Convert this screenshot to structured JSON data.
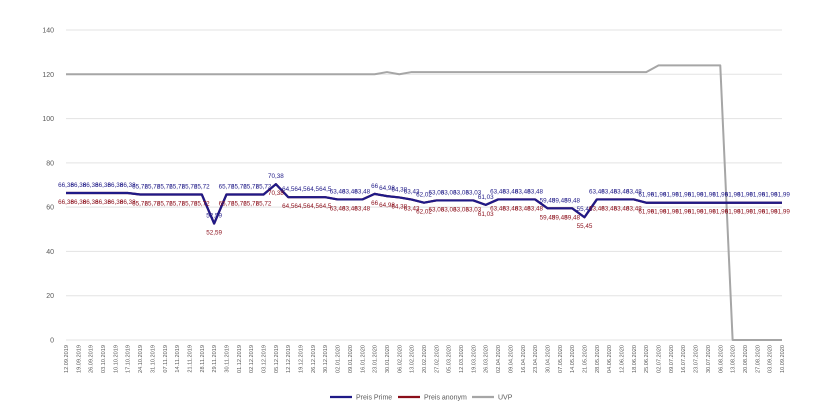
{
  "chart_data": {
    "type": "line",
    "title": "",
    "xlabel": "",
    "ylabel": "",
    "ylim": [
      0,
      140
    ],
    "yticks": [
      0,
      20,
      40,
      60,
      80,
      100,
      120,
      140
    ],
    "grid": true,
    "legend_position": "bottom",
    "categories": [
      "12.09.2019",
      "19.09.2019",
      "26.09.2019",
      "03.10.2019",
      "10.10.2019",
      "17.10.2019",
      "24.10.2019",
      "31.10.2019",
      "07.11.2019",
      "14.11.2019",
      "21.11.2019",
      "28.11.2019",
      "29.11.2019",
      "30.11.2019",
      "01.12.2019",
      "02.12.2019",
      "03.12.2019",
      "05.12.2019",
      "12.12.2019",
      "19.12.2019",
      "26.12.2019",
      "30.12.2019",
      "02.01.2020",
      "09.01.2020",
      "16.01.2020",
      "23.01.2020",
      "30.01.2020",
      "06.02.2020",
      "13.02.2020",
      "20.02.2020",
      "27.02.2020",
      "05.03.2020",
      "12.03.2020",
      "19.03.2020",
      "26.03.2020",
      "02.04.2020",
      "09.04.2020",
      "16.04.2020",
      "23.04.2020",
      "30.04.2020",
      "07.05.2020",
      "14.05.2020",
      "21.05.2020",
      "28.05.2020",
      "04.06.2020",
      "12.06.2020",
      "18.06.2020",
      "25.06.2020",
      "02.07.2020",
      "09.07.2020",
      "16.07.2020",
      "23.07.2020",
      "30.07.2020",
      "06.08.2020",
      "13.08.2020",
      "20.08.2020",
      "27.08.2020",
      "03.09.2020",
      "10.09.2020"
    ],
    "series": [
      {
        "name": "Preis Prime",
        "color": "#1f1a87",
        "values": [
          66.38,
          66.38,
          66.38,
          66.38,
          66.38,
          66.38,
          65.72,
          65.72,
          65.72,
          65.72,
          65.72,
          65.72,
          52.59,
          65.72,
          65.72,
          65.72,
          65.72,
          70.38,
          64.5,
          64.5,
          64.5,
          64.5,
          63.48,
          63.48,
          63.48,
          66.0,
          64.98,
          64.38,
          63.43,
          62.02,
          63.03,
          63.03,
          63.03,
          63.03,
          61.03,
          63.48,
          63.48,
          63.48,
          63.48,
          59.48,
          59.48,
          59.48,
          55.45,
          63.48,
          63.48,
          63.48,
          63.48,
          61.99,
          61.99,
          61.99,
          61.99,
          61.99,
          61.99,
          61.99,
          61.99,
          61.99,
          61.99,
          61.99,
          61.99
        ],
        "labels": [
          "66,38",
          "66,38",
          "66,38",
          "66,38",
          "66,38",
          "66,38",
          "65,72",
          "65,72",
          "65,72",
          "65,72",
          "65,72",
          "65,72",
          "52,59",
          "65,72",
          "65,72",
          "65,72",
          "65,72",
          "70,38",
          "64,5",
          "64,5",
          "64,5",
          "64,5",
          "63,48",
          "63,48",
          "63,48",
          "66",
          "64,98",
          "64,38",
          "63,43",
          "62,02",
          "63,03",
          "63,03",
          "63,03",
          "63,03",
          "61,03",
          "63,48",
          "63,48",
          "63,48",
          "63,48",
          "59,48",
          "59,48",
          "59,48",
          "55,45",
          "63,48",
          "63,48",
          "63,48",
          "63,48",
          "61,99",
          "61,99",
          "61,99",
          "61,99",
          "61,99",
          "61,99",
          "61,99",
          "61,99",
          "61,99",
          "61,99",
          "61,99",
          "61,99"
        ]
      },
      {
        "name": "Preis anonym",
        "color": "#8b0e1a",
        "values": [
          66.38,
          66.38,
          66.38,
          66.38,
          66.38,
          66.38,
          65.72,
          65.72,
          65.72,
          65.72,
          65.72,
          65.72,
          52.59,
          65.72,
          65.72,
          65.72,
          65.72,
          70.38,
          64.5,
          64.5,
          64.5,
          64.5,
          63.48,
          63.48,
          63.48,
          66.0,
          64.98,
          64.38,
          63.43,
          62.02,
          63.03,
          63.03,
          63.03,
          63.03,
          61.03,
          63.48,
          63.48,
          63.48,
          63.48,
          59.48,
          59.48,
          59.48,
          55.45,
          63.48,
          63.48,
          63.48,
          63.48,
          61.99,
          61.99,
          61.99,
          61.99,
          61.99,
          61.99,
          61.99,
          61.99,
          61.99,
          61.99,
          61.99,
          61.99
        ],
        "labels": [
          "66,38",
          "66,38",
          "66,38",
          "66,38",
          "66,38",
          "66,38",
          "65,72",
          "65,72",
          "65,72",
          "65,72",
          "65,72",
          "65,72",
          "52,59",
          "65,72",
          "65,72",
          "65,72",
          "65,72",
          "70,38",
          "64,5",
          "64,5",
          "64,5",
          "64,5",
          "63,48",
          "63,48",
          "63,48",
          "66",
          "64,98",
          "64,38",
          "63,43",
          "62,02",
          "63,03",
          "63,03",
          "63,03",
          "63,03",
          "61,03",
          "63,48",
          "63,48",
          "63,48",
          "63,48",
          "59,48",
          "59,48",
          "59,48",
          "55,45",
          "63,48",
          "63,48",
          "63,48",
          "63,48",
          "61,99",
          "61,99",
          "61,99",
          "61,99",
          "61,99",
          "61,99",
          "61,99",
          "61,99",
          "61,99",
          "61,99",
          "61,99",
          "61,99"
        ]
      },
      {
        "name": "UVP",
        "color": "#a6a6a6",
        "values": [
          120,
          120,
          120,
          120,
          120,
          120,
          120,
          120,
          120,
          120,
          120,
          120,
          120,
          120,
          120,
          120,
          120,
          120,
          120,
          120,
          120,
          120,
          120,
          120,
          120,
          120,
          121,
          120,
          121,
          121,
          121,
          121,
          121,
          121,
          121,
          121,
          121,
          121,
          121,
          121,
          121,
          121,
          121,
          121,
          121,
          121,
          121,
          121,
          124,
          124,
          124,
          124,
          124,
          124,
          0,
          0,
          0,
          0,
          0
        ]
      }
    ]
  }
}
